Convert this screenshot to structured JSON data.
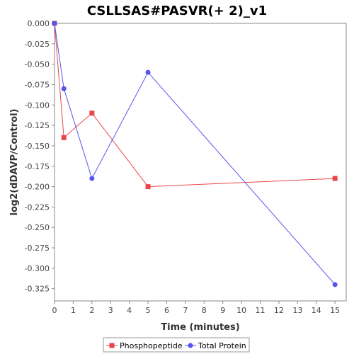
{
  "chart_data": {
    "type": "line",
    "title": "CSLLSAS#PASVR(+ 2)_v1",
    "xlabel": "Time (minutes)",
    "ylabel": "log2(dDAVP/Control)",
    "xlim": [
      0,
      15.6
    ],
    "ylim": [
      -0.34,
      0.0
    ],
    "x_ticks": [
      "0",
      "1",
      "2",
      "3",
      "4",
      "5",
      "6",
      "7",
      "8",
      "9",
      "10",
      "11",
      "12",
      "13",
      "14",
      "15"
    ],
    "y_ticks": [
      "0.000",
      "-0.025",
      "-0.050",
      "-0.075",
      "-0.100",
      "-0.125",
      "-0.150",
      "-0.175",
      "-0.200",
      "-0.225",
      "-0.250",
      "-0.275",
      "-0.300",
      "-0.325"
    ],
    "grid": false,
    "legend_position": "bottom",
    "series": [
      {
        "name": "Phosphopeptide",
        "color": "#e8474a",
        "marker": "square",
        "x": [
          0,
          0.5,
          2,
          5,
          15
        ],
        "y": [
          0.0,
          -0.14,
          -0.11,
          -0.2,
          -0.19
        ]
      },
      {
        "name": "Total Protein",
        "color": "#5555ee",
        "marker": "circle",
        "x": [
          0,
          0.5,
          2,
          5,
          15
        ],
        "y": [
          0.0,
          -0.08,
          -0.19,
          -0.06,
          -0.32
        ]
      }
    ]
  }
}
